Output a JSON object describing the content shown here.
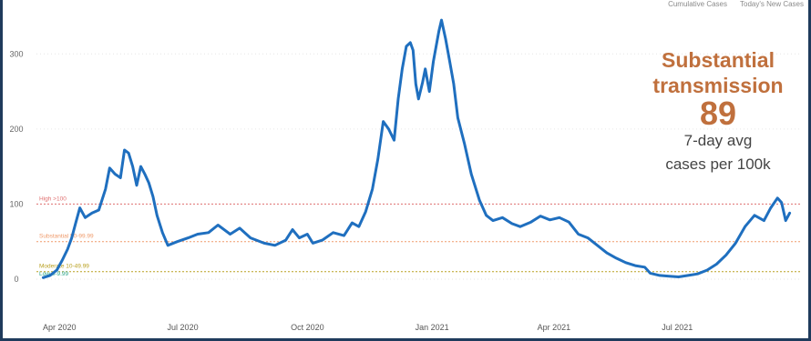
{
  "tabs": [
    "Cumulative Cases",
    "Today's New Cases"
  ],
  "callout": {
    "level_line1": "Substantial",
    "level_line2": "transmission",
    "value": "89",
    "desc_line1": "7-day avg",
    "desc_line2": "cases per 100k"
  },
  "colors": {
    "line": "#1f6fbf",
    "high": "#e07070",
    "substantial": "#ef9a6a",
    "moderate": "#b9a020",
    "low": "#2aa58a",
    "callout": "#c0703d",
    "frame": "#1f3b5c"
  },
  "chart_data": {
    "type": "line",
    "title": "",
    "xlabel": "",
    "ylabel": "",
    "x_ticks": [
      "Apr 2020",
      "Jul 2020",
      "Oct 2020",
      "Jan 2021",
      "Apr 2021",
      "Jul 2021"
    ],
    "y_ticks": [
      0,
      100,
      200,
      300
    ],
    "ylim": [
      0,
      350
    ],
    "xlim": [
      "2020-03-15",
      "2021-10-01"
    ],
    "grid": true,
    "thresholds": [
      {
        "label": "High >100",
        "value": 100,
        "color": "#e07070"
      },
      {
        "label": "Substantial 50-99.99",
        "value": 50,
        "color": "#ef9a6a"
      },
      {
        "label": "Moderate 10-49.99",
        "value": 10,
        "color": "#b9a020"
      },
      {
        "label": "Low 0-9.99",
        "value": 0,
        "color": "#2aa58a"
      }
    ],
    "series": [
      {
        "values": [
          [
            "2020-03-20",
            2
          ],
          [
            "2020-03-25",
            5
          ],
          [
            "2020-03-30",
            12
          ],
          [
            "2020-04-03",
            25
          ],
          [
            "2020-04-07",
            40
          ],
          [
            "2020-04-10",
            55
          ],
          [
            "2020-04-13",
            75
          ],
          [
            "2020-04-16",
            95
          ],
          [
            "2020-04-20",
            82
          ],
          [
            "2020-04-25",
            88
          ],
          [
            "2020-04-30",
            92
          ],
          [
            "2020-05-05",
            120
          ],
          [
            "2020-05-08",
            148
          ],
          [
            "2020-05-12",
            140
          ],
          [
            "2020-05-16",
            135
          ],
          [
            "2020-05-19",
            172
          ],
          [
            "2020-05-22",
            168
          ],
          [
            "2020-05-25",
            150
          ],
          [
            "2020-05-28",
            125
          ],
          [
            "2020-05-31",
            150
          ],
          [
            "2020-06-03",
            140
          ],
          [
            "2020-06-06",
            128
          ],
          [
            "2020-06-09",
            110
          ],
          [
            "2020-06-12",
            85
          ],
          [
            "2020-06-16",
            62
          ],
          [
            "2020-06-20",
            45
          ],
          [
            "2020-06-27",
            50
          ],
          [
            "2020-07-05",
            55
          ],
          [
            "2020-07-12",
            60
          ],
          [
            "2020-07-20",
            62
          ],
          [
            "2020-07-27",
            72
          ],
          [
            "2020-08-05",
            60
          ],
          [
            "2020-08-12",
            68
          ],
          [
            "2020-08-20",
            55
          ],
          [
            "2020-08-30",
            48
          ],
          [
            "2020-09-07",
            45
          ],
          [
            "2020-09-15",
            52
          ],
          [
            "2020-09-20",
            66
          ],
          [
            "2020-09-25",
            55
          ],
          [
            "2020-10-01",
            60
          ],
          [
            "2020-10-05",
            48
          ],
          [
            "2020-10-12",
            52
          ],
          [
            "2020-10-20",
            62
          ],
          [
            "2020-10-28",
            58
          ],
          [
            "2020-11-03",
            75
          ],
          [
            "2020-11-08",
            70
          ],
          [
            "2020-11-13",
            90
          ],
          [
            "2020-11-18",
            120
          ],
          [
            "2020-11-22",
            160
          ],
          [
            "2020-11-26",
            210
          ],
          [
            "2020-11-30",
            200
          ],
          [
            "2020-12-04",
            185
          ],
          [
            "2020-12-07",
            240
          ],
          [
            "2020-12-10",
            280
          ],
          [
            "2020-12-13",
            310
          ],
          [
            "2020-12-16",
            315
          ],
          [
            "2020-12-18",
            305
          ],
          [
            "2020-12-20",
            260
          ],
          [
            "2020-12-22",
            240
          ],
          [
            "2020-12-25",
            262
          ],
          [
            "2020-12-27",
            280
          ],
          [
            "2020-12-30",
            250
          ],
          [
            "2021-01-02",
            290
          ],
          [
            "2021-01-06",
            330
          ],
          [
            "2021-01-08",
            345
          ],
          [
            "2021-01-11",
            320
          ],
          [
            "2021-01-14",
            290
          ],
          [
            "2021-01-17",
            260
          ],
          [
            "2021-01-20",
            215
          ],
          [
            "2021-01-25",
            180
          ],
          [
            "2021-01-30",
            140
          ],
          [
            "2021-02-05",
            105
          ],
          [
            "2021-02-10",
            85
          ],
          [
            "2021-02-15",
            78
          ],
          [
            "2021-02-22",
            82
          ],
          [
            "2021-03-01",
            74
          ],
          [
            "2021-03-07",
            70
          ],
          [
            "2021-03-15",
            76
          ],
          [
            "2021-03-22",
            84
          ],
          [
            "2021-03-29",
            79
          ],
          [
            "2021-04-05",
            82
          ],
          [
            "2021-04-12",
            76
          ],
          [
            "2021-04-19",
            60
          ],
          [
            "2021-04-26",
            55
          ],
          [
            "2021-05-03",
            45
          ],
          [
            "2021-05-10",
            35
          ],
          [
            "2021-05-17",
            28
          ],
          [
            "2021-05-24",
            22
          ],
          [
            "2021-05-31",
            18
          ],
          [
            "2021-06-07",
            16
          ],
          [
            "2021-06-11",
            8
          ],
          [
            "2021-06-18",
            5
          ],
          [
            "2021-06-25",
            4
          ],
          [
            "2021-07-02",
            3
          ],
          [
            "2021-07-09",
            5
          ],
          [
            "2021-07-16",
            7
          ],
          [
            "2021-07-23",
            12
          ],
          [
            "2021-07-30",
            20
          ],
          [
            "2021-08-06",
            32
          ],
          [
            "2021-08-13",
            48
          ],
          [
            "2021-08-20",
            70
          ],
          [
            "2021-08-27",
            85
          ],
          [
            "2021-09-03",
            78
          ],
          [
            "2021-09-08",
            95
          ],
          [
            "2021-09-13",
            108
          ],
          [
            "2021-09-16",
            102
          ],
          [
            "2021-09-19",
            78
          ],
          [
            "2021-09-22",
            88
          ]
        ]
      }
    ]
  }
}
